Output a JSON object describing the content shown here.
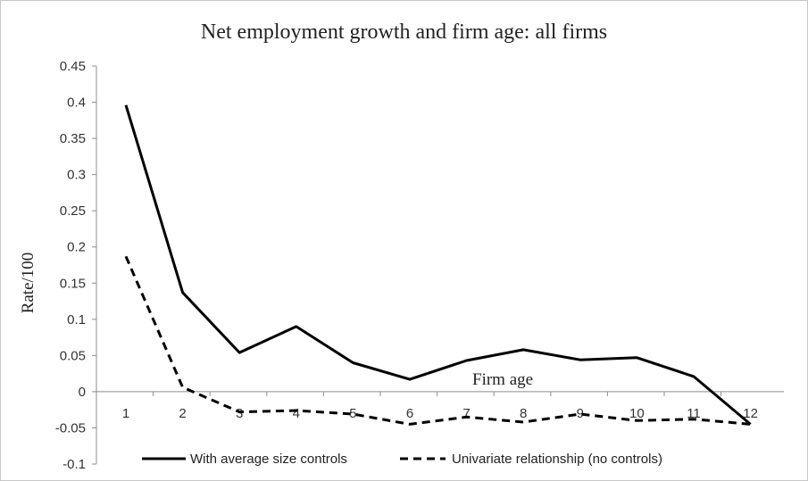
{
  "chart_data": {
    "type": "line",
    "title": "Net employment growth and firm age: all firms",
    "xlabel": "Firm age",
    "ylabel": "Rate/100",
    "categories": [
      "1",
      "2",
      "3",
      "4",
      "5",
      "6",
      "7",
      "8",
      "9",
      "10",
      "11",
      "12"
    ],
    "yticks": [
      "0.45",
      "0.4",
      "0.35",
      "0.3",
      "0.25",
      "0.2",
      "0.15",
      "0.1",
      "0.05",
      "0",
      "-0.05",
      "-0.1"
    ],
    "ylim": [
      -0.1,
      0.45
    ],
    "grid": false,
    "legend_position": "bottom",
    "series": [
      {
        "name": "With average size controls",
        "style": "solid",
        "color": "#000000",
        "values": [
          0.396,
          0.137,
          0.054,
          0.09,
          0.04,
          0.017,
          0.043,
          0.058,
          0.044,
          0.047,
          0.021,
          -0.045
        ]
      },
      {
        "name": "Univariate relationship (no controls)",
        "style": "dashed",
        "color": "#000000",
        "values": [
          0.187,
          0.006,
          -0.028,
          -0.026,
          -0.031,
          -0.045,
          -0.035,
          -0.042,
          -0.031,
          -0.04,
          -0.038,
          -0.045
        ]
      }
    ]
  }
}
